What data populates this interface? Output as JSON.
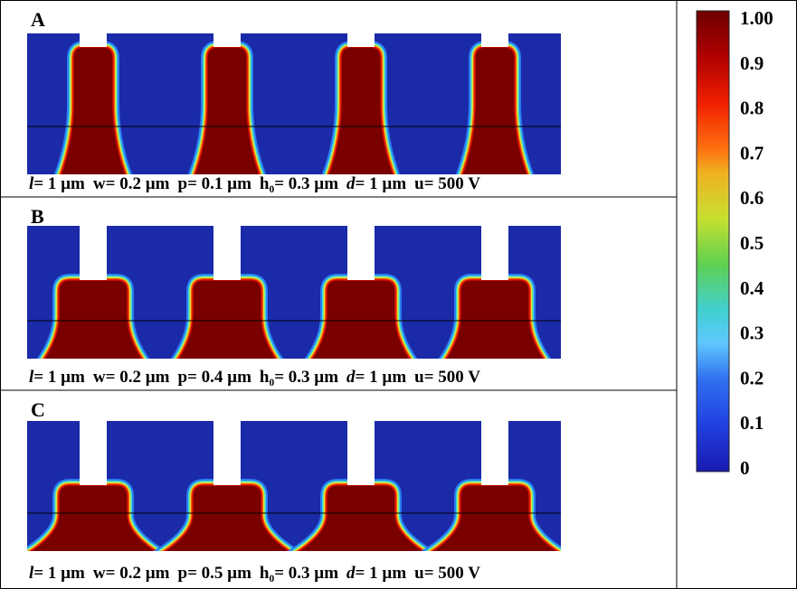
{
  "panels": [
    {
      "label": "A",
      "caption": [
        {
          "symbol": "l",
          "italic": true,
          "text": "= 1 µm"
        },
        {
          "symbol": "w",
          "italic": false,
          "text": "= 0.2 µm"
        },
        {
          "symbol": "p",
          "italic": false,
          "text": "= 0.1 µm"
        },
        {
          "symbol": "h₀",
          "italic": false,
          "text": "= 0.3 µm"
        },
        {
          "symbol": "d",
          "italic": true,
          "text": "= 1 µm"
        },
        {
          "symbol": "u",
          "italic": false,
          "text": "= 500 V"
        }
      ]
    },
    {
      "label": "B",
      "caption": [
        {
          "symbol": "l",
          "italic": true,
          "text": "= 1 µm"
        },
        {
          "symbol": "w",
          "italic": false,
          "text": "= 0.2 µm"
        },
        {
          "symbol": "p",
          "italic": false,
          "text": "= 0.4 µm"
        },
        {
          "symbol": "h₀",
          "italic": false,
          "text": "= 0.3 µm"
        },
        {
          "symbol": "d",
          "italic": true,
          "text": "= 1 µm"
        },
        {
          "symbol": "u",
          "italic": false,
          "text": "= 500 V"
        }
      ]
    },
    {
      "label": "C",
      "caption": [
        {
          "symbol": "l",
          "italic": true,
          "text": "= 1 µm"
        },
        {
          "symbol": "w",
          "italic": false,
          "text": "= 0.2 µm"
        },
        {
          "symbol": "p",
          "italic": false,
          "text": "= 0.5 µm"
        },
        {
          "symbol": "h₀",
          "italic": false,
          "text": "= 0.3 µm"
        },
        {
          "symbol": "d",
          "italic": true,
          "text": "= 1 µm"
        },
        {
          "symbol": "u",
          "italic": false,
          "text": "= 500 V"
        }
      ]
    }
  ],
  "colorbar": {
    "ticks": [
      "1.00",
      "0.9",
      "0.8",
      "0.7",
      "0.6",
      "0.5",
      "0.4",
      "0.3",
      "0.2",
      "0.1",
      "0"
    ]
  }
}
